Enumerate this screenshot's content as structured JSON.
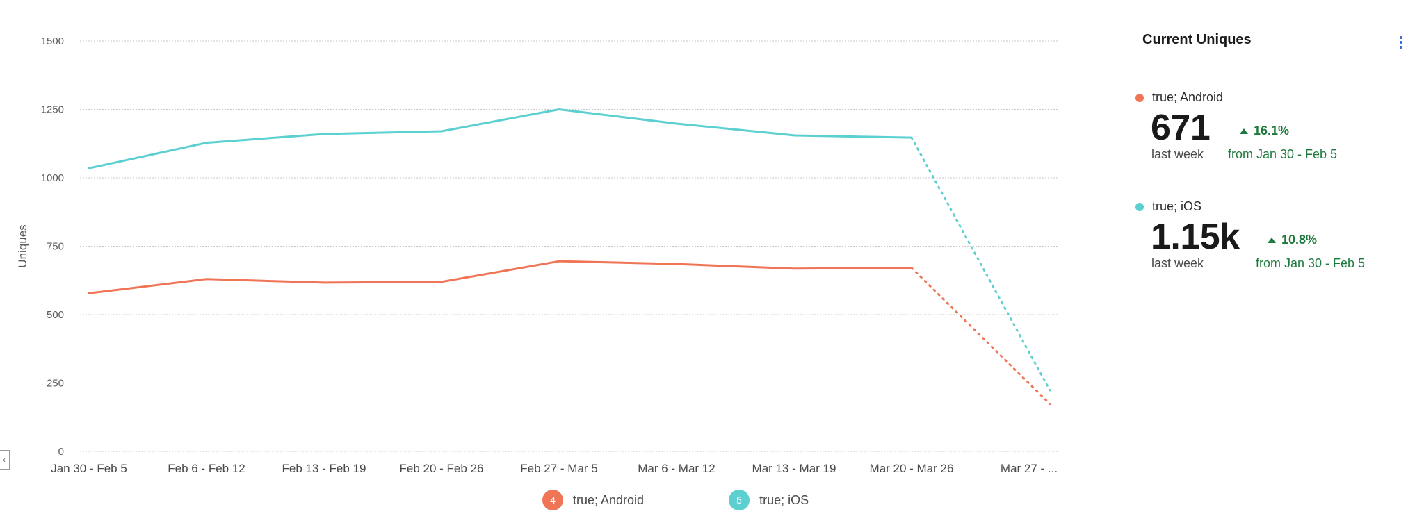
{
  "chart_data": {
    "type": "line",
    "ylabel": "Uniques",
    "xlabel": "",
    "ylim": [
      0,
      1500
    ],
    "yticks": [
      0,
      250,
      500,
      750,
      1000,
      1250,
      1500
    ],
    "categories": [
      "Jan 30 - Feb 5",
      "Feb 6 - Feb 12",
      "Feb 13 - Feb 19",
      "Feb 20 - Feb 26",
      "Feb 27 - Mar 5",
      "Mar 6 - Mar 12",
      "Mar 13 - Mar 19",
      "Mar 20 - Mar 26",
      "Mar 27 - ..."
    ],
    "series": [
      {
        "name": "true; iOS",
        "badge": "5",
        "color": "#5ccfd1",
        "values": [
          1035,
          1128,
          1160,
          1170,
          1250,
          1198,
          1155,
          1147,
          160
        ],
        "partial_last": true
      },
      {
        "name": "true; Android",
        "badge": "4",
        "color": "#ef7556",
        "values": [
          578,
          630,
          617,
          620,
          695,
          685,
          668,
          671,
          110
        ],
        "partial_last": true
      }
    ],
    "legend": [
      {
        "badge": "4",
        "label": "true; Android",
        "color": "#ef7556"
      },
      {
        "badge": "5",
        "label": "true; iOS",
        "color": "#5ccfd1"
      }
    ]
  },
  "collapse_icon": "chevron-left-icon",
  "panel": {
    "title": "Current Uniques",
    "menu_icon": "kebab-menu-icon",
    "metrics": [
      {
        "series": "true; Android",
        "color": "#ef7556",
        "value": "671",
        "sub": "last week",
        "change": "16.1%",
        "from": "from Jan 30 - Feb 5"
      },
      {
        "series": "true; iOS",
        "color": "#5ccfd1",
        "value": "1.15k",
        "sub": "last week",
        "change": "10.8%",
        "from": "from Jan 30 - Feb 5"
      }
    ],
    "change_color": "#1e7a3c"
  }
}
